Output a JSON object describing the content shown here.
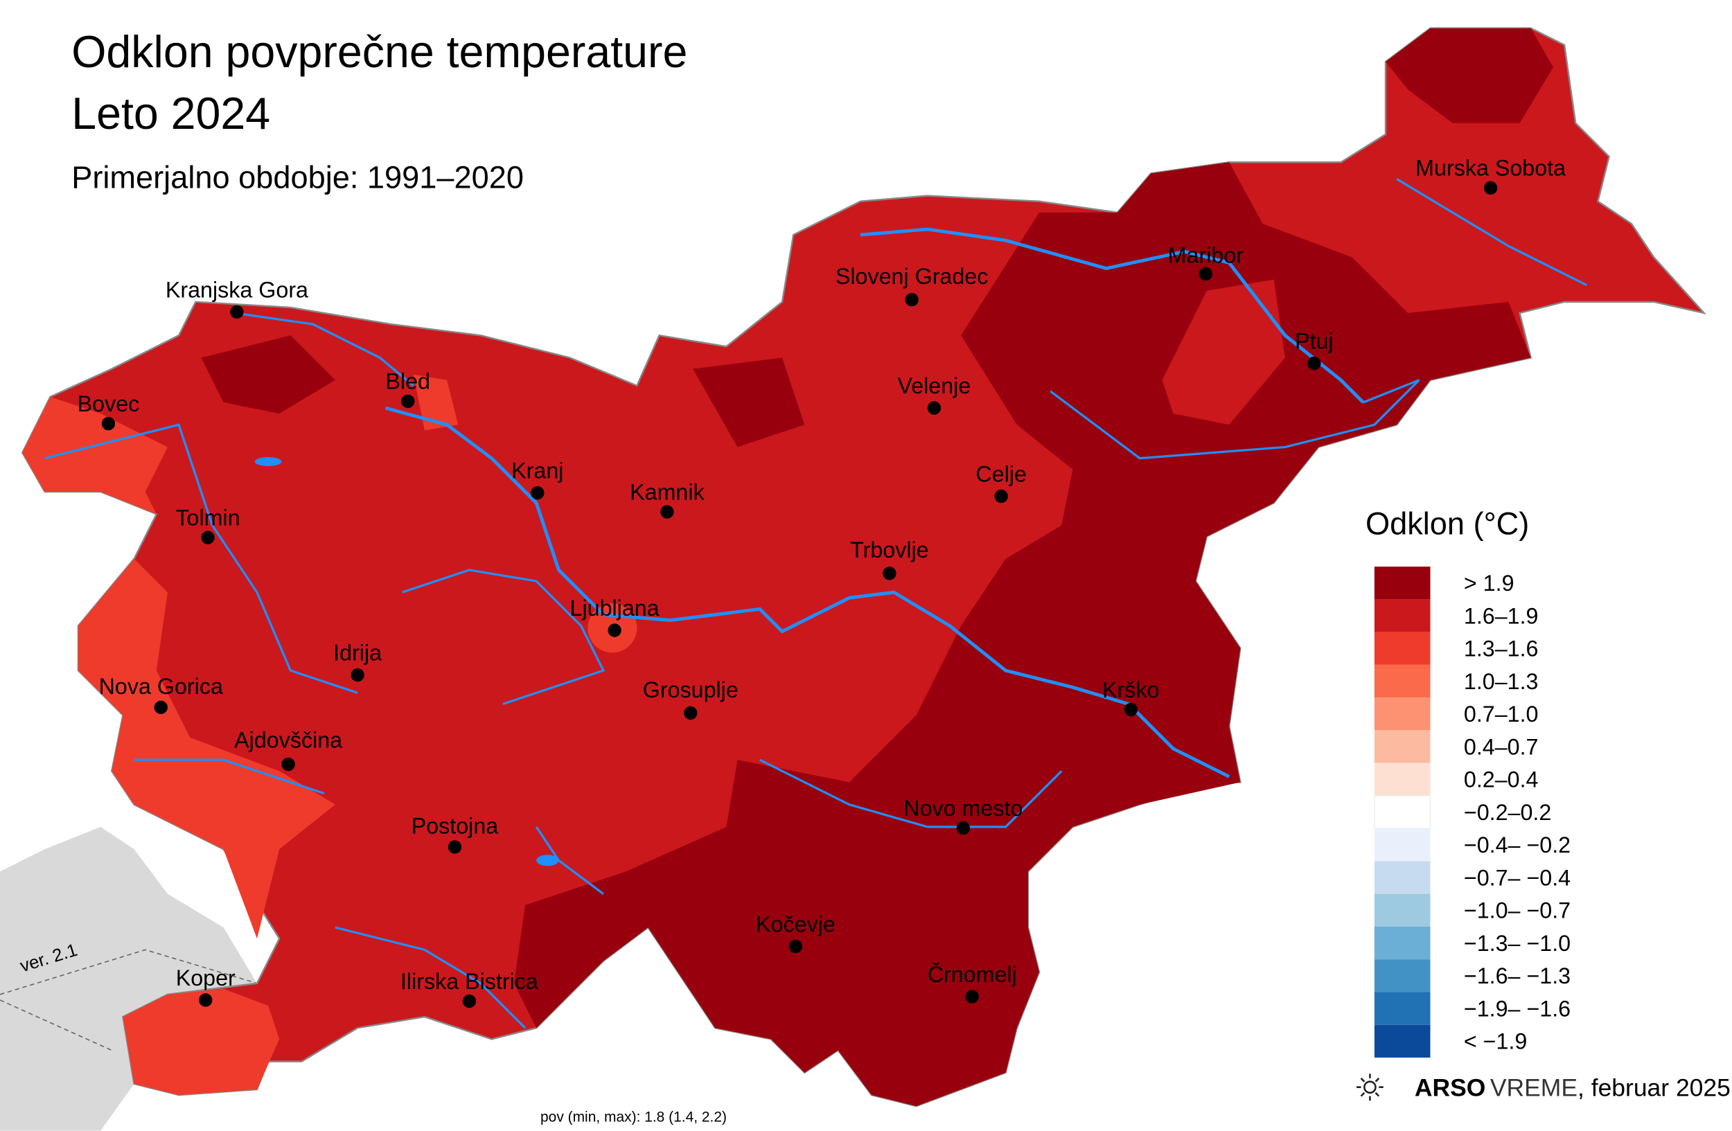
{
  "header": {
    "title_line1": "Odklon povprečne temperature",
    "title_line2": "Leto 2024",
    "subtitle": "Primerjalno obdobje: 1991–2020"
  },
  "cities": [
    "Kranjska Gora",
    "Bled",
    "Bovec",
    "Kranj",
    "Kamnik",
    "Tolmin",
    "Ljubljana",
    "Idrija",
    "Nova Gorica",
    "Ajdovščina",
    "Grosuplje",
    "Postojna",
    "Koper",
    "Ilirska Bistrica",
    "Kočevje",
    "Črnomelj",
    "Novo mesto",
    "Krško",
    "Trbovlje",
    "Celje",
    "Velenje",
    "Slovenj Gradec",
    "Maribor",
    "Ptuj",
    "Murska Sobota"
  ],
  "legend": {
    "title": "Odklon (°C)",
    "items": [
      {
        "label": "> 1.9",
        "color": "#99000d"
      },
      {
        "label": "1.6–1.9",
        "color": "#cb181d"
      },
      {
        "label": "1.3–1.6",
        "color": "#ef3b2c"
      },
      {
        "label": "1.0–1.3",
        "color": "#fb6a4a"
      },
      {
        "label": "0.7–1.0",
        "color": "#fc9272"
      },
      {
        "label": "0.4–0.7",
        "color": "#fcbba1"
      },
      {
        "label": "0.2–0.4",
        "color": "#fee0d2"
      },
      {
        "label": "−0.2–0.2",
        "color": "#ffffff"
      },
      {
        "label": "−0.4– −0.2",
        "color": "#eaf0fb"
      },
      {
        "label": "−0.7– −0.4",
        "color": "#c6dbef"
      },
      {
        "label": "−1.0– −0.7",
        "color": "#9ecae1"
      },
      {
        "label": "−1.3– −1.0",
        "color": "#6baed6"
      },
      {
        "label": "−1.6– −1.3",
        "color": "#4292c6"
      },
      {
        "label": "−1.9– −1.6",
        "color": "#2171b5"
      },
      {
        "label": "< −1.9",
        "color": "#0b4a9a"
      }
    ]
  },
  "credits": {
    "brand_bold": "ARSO",
    "brand": "VREME",
    "date": ", februar 2025",
    "stats": "pov (min, max): 1.8 (1.4, 2.2)",
    "version": "ver. 2.1"
  }
}
